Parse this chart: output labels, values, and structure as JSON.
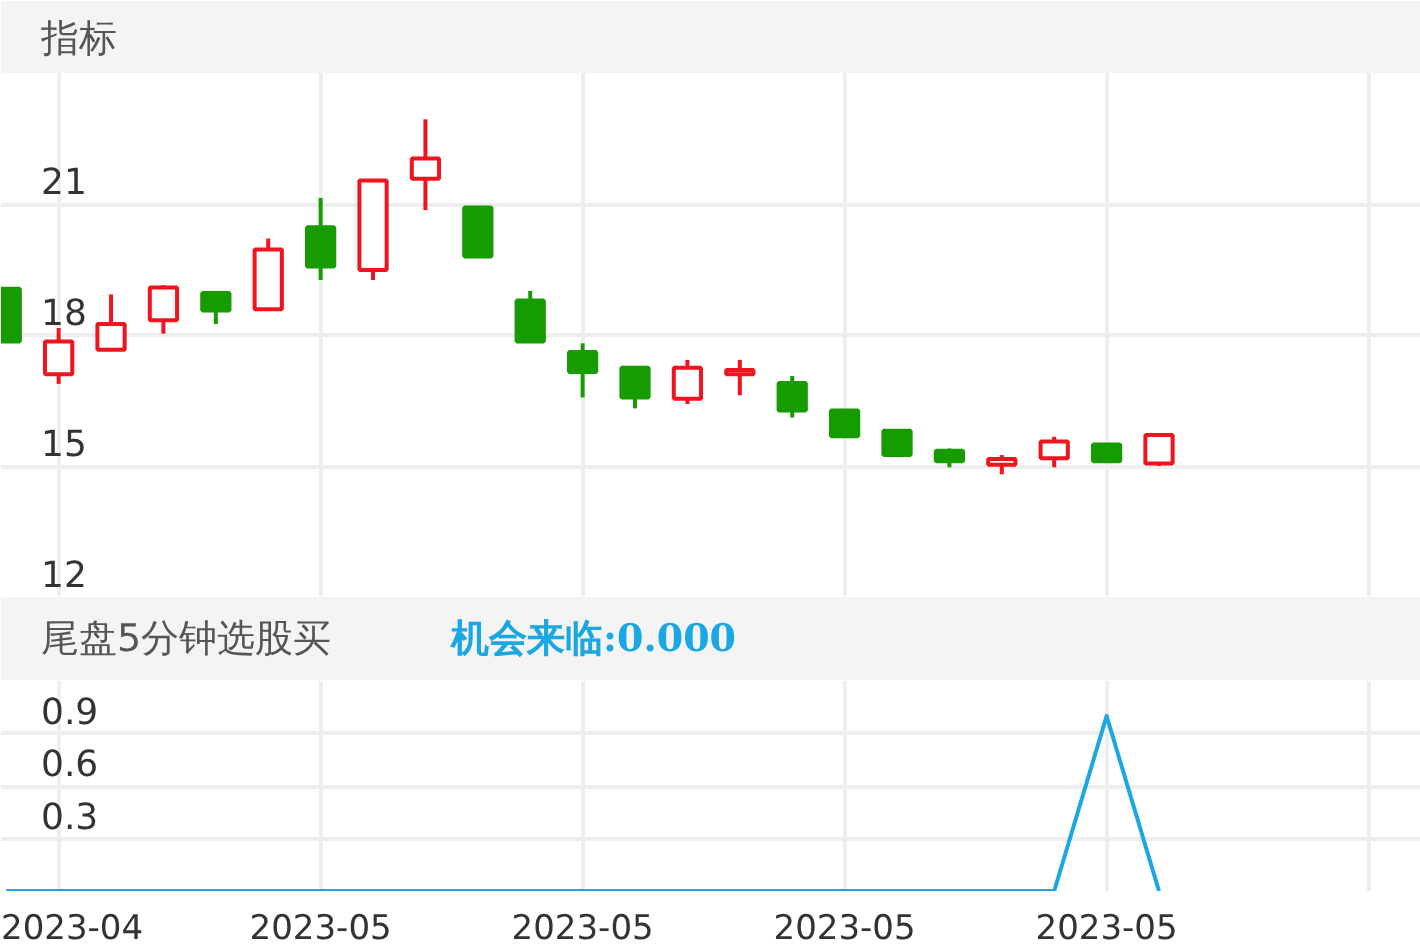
{
  "chart_data": [
    {
      "type": "candlestick",
      "title": "指标",
      "categories": [
        null,
        "2023-04",
        null,
        null,
        null,
        null,
        "2023-05",
        null,
        null,
        null,
        null,
        "2023-05",
        null,
        null,
        null,
        null,
        "2023-05",
        null,
        null,
        null,
        null,
        "2023-05",
        null
      ],
      "ohlc": [
        [
          19.06,
          19.06,
          17.85,
          17.85
        ],
        [
          17.1,
          18.16,
          16.88,
          17.85
        ],
        [
          17.66,
          18.93,
          17.66,
          18.25
        ],
        [
          18.34,
          19.14,
          18.03,
          19.09
        ],
        [
          18.96,
          19.01,
          18.25,
          18.56
        ],
        [
          18.59,
          20.21,
          18.59,
          19.96
        ],
        [
          20.47,
          21.14,
          19.26,
          19.57
        ],
        [
          19.49,
          21.54,
          19.26,
          21.54
        ],
        [
          21.58,
          22.94,
          20.86,
          22.04
        ],
        [
          20.92,
          20.95,
          19.8,
          19.8
        ],
        [
          18.79,
          19.01,
          17.85,
          17.85
        ],
        [
          17.61,
          17.81,
          16.57,
          17.15
        ],
        [
          17.25,
          17.29,
          16.32,
          16.57
        ],
        [
          16.54,
          17.43,
          16.42,
          17.25
        ],
        [
          17.1,
          17.43,
          16.62,
          17.2
        ],
        [
          16.9,
          17.06,
          16.11,
          16.27
        ],
        [
          16.27,
          16.27,
          15.68,
          15.68
        ],
        [
          15.81,
          15.84,
          15.25,
          15.25
        ],
        [
          15.35,
          15.4,
          14.97,
          15.11
        ],
        [
          15.03,
          15.25,
          14.81,
          15.16
        ],
        [
          15.18,
          15.67,
          14.97,
          15.56
        ],
        [
          15.49,
          15.52,
          15.11,
          15.11
        ],
        [
          15.06,
          15.71,
          15.0,
          15.71
        ]
      ],
      "colors": [
        "#169c00",
        "#f0141e",
        "#f0141e",
        "#f0141e",
        "#169c00",
        "#f0141e",
        "#169c00",
        "#f0141e",
        "#f0141e",
        "#169c00",
        "#169c00",
        "#169c00",
        "#169c00",
        "#f0141e",
        "#f0141e",
        "#169c00",
        "#169c00",
        "#169c00",
        "#169c00",
        "#f0141e",
        "#f0141e",
        "#169c00",
        "#f0141e"
      ],
      "ylim": [
        12,
        24
      ],
      "yticks": [
        12,
        15,
        18,
        21
      ],
      "grid": true,
      "tick_labels": "y"
    },
    {
      "type": "line",
      "title": "尾盘5分钟选股买",
      "categories": [
        null,
        "2023-04",
        null,
        null,
        null,
        null,
        "2023-05",
        null,
        null,
        null,
        null,
        "2023-05",
        null,
        null,
        null,
        null,
        "2023-05",
        null,
        null,
        null,
        null,
        "2023-05",
        null
      ],
      "series": [
        {
          "name": "机会来临:0.000",
          "color": "#1ba8e2",
          "values": [
            0,
            0,
            0,
            0,
            0,
            0,
            0,
            0,
            0,
            0,
            0,
            0,
            0,
            0,
            0,
            0,
            0,
            0,
            0,
            0,
            0,
            1,
            0
          ]
        }
      ],
      "ylim": [
        0,
        1.2
      ],
      "yticks": [
        0.3,
        0.6,
        0.9
      ],
      "grid": true
    }
  ]
}
